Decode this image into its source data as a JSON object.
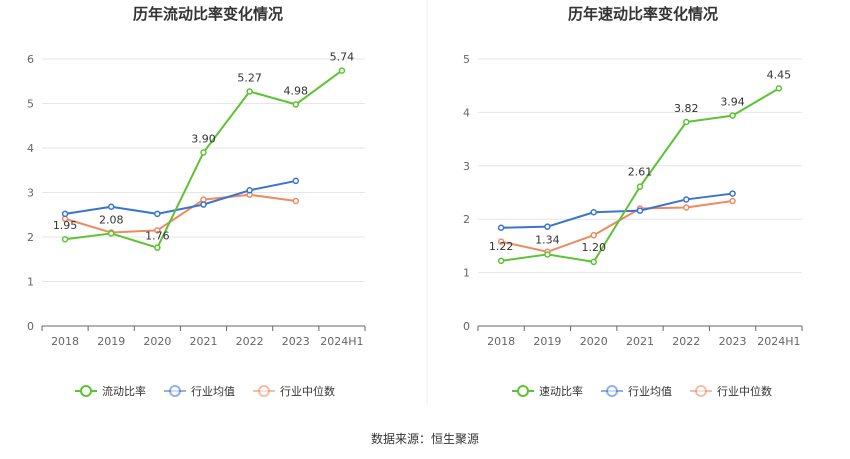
{
  "chart_data": [
    {
      "type": "line",
      "title": "历年流动比率变化情况",
      "categories": [
        "2018",
        "2019",
        "2020",
        "2021",
        "2022",
        "2023",
        "2024H1"
      ],
      "ylim": [
        0,
        6
      ],
      "yticks": [
        0,
        1,
        2,
        3,
        4,
        5,
        6
      ],
      "grid": true,
      "legend_position": "bottom",
      "series": [
        {
          "name": "流动比率",
          "color": "#5cc332",
          "values": [
            1.95,
            2.08,
            1.76,
            3.9,
            5.27,
            4.98,
            5.74
          ],
          "labels": [
            "1.95",
            "2.08",
            "1.76",
            "3.90",
            "5.27",
            "4.98",
            "5.74"
          ]
        },
        {
          "name": "行业均值",
          "color": "#3a73d4",
          "values": [
            2.52,
            2.68,
            2.52,
            2.73,
            3.05,
            3.26,
            null
          ]
        },
        {
          "name": "行业中位数",
          "color": "#ee8a60",
          "values": [
            2.41,
            2.1,
            2.15,
            2.84,
            2.95,
            2.81,
            null
          ]
        }
      ]
    },
    {
      "type": "line",
      "title": "历年速动比率变化情况",
      "categories": [
        "2018",
        "2019",
        "2020",
        "2021",
        "2022",
        "2023",
        "2024H1"
      ],
      "ylim": [
        0,
        5
      ],
      "yticks": [
        0,
        1,
        2,
        3,
        4,
        5
      ],
      "grid": true,
      "legend_position": "bottom",
      "series": [
        {
          "name": "速动比率",
          "color": "#5cc332",
          "values": [
            1.22,
            1.34,
            1.2,
            2.61,
            3.82,
            3.94,
            4.45
          ],
          "labels": [
            "1.22",
            "1.34",
            "1.20",
            "2.61",
            "3.82",
            "3.94",
            "4.45"
          ]
        },
        {
          "name": "行业均值",
          "color": "#3a73d4",
          "values": [
            1.84,
            1.86,
            2.13,
            2.16,
            2.37,
            2.48,
            null
          ]
        },
        {
          "name": "行业中位数",
          "color": "#ee8a60",
          "values": [
            1.58,
            1.39,
            1.7,
            2.2,
            2.22,
            2.34,
            null
          ]
        }
      ]
    }
  ],
  "source_text": "数据来源：恒生聚源"
}
